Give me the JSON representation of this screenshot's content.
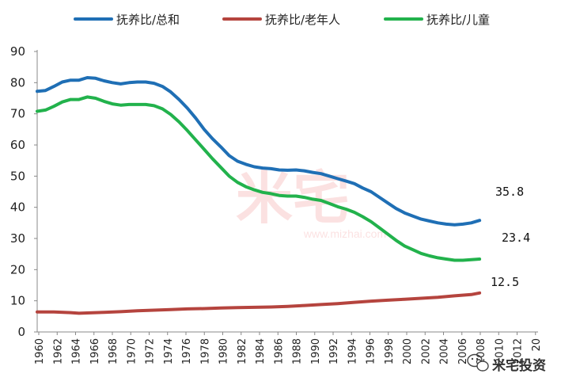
{
  "chart_data": {
    "type": "line",
    "title": "",
    "xlabel": "",
    "ylabel": "",
    "ylim": [
      0,
      90
    ],
    "yticks": [
      0,
      10,
      20,
      30,
      40,
      50,
      60,
      70,
      80,
      90
    ],
    "xlim": [
      1960,
      2020
    ],
    "xtick_labels": [
      "1960",
      "1962",
      "1964",
      "1966",
      "1968",
      "1970",
      "1972",
      "1974",
      "1976",
      "1978",
      "1980",
      "1982",
      "1984",
      "1986",
      "1988",
      "1990",
      "1992",
      "1994",
      "1996",
      "1998",
      "2000",
      "2002",
      "2004",
      "2006",
      "2008",
      "2010",
      "2012",
      "20"
    ],
    "grid": false,
    "legend_position": "top",
    "series": [
      {
        "name": "抚养比/总和",
        "color": "#1f6fb5",
        "points": [
          [
            1960,
            77.2
          ],
          [
            1961,
            77.5
          ],
          [
            1962,
            78.8
          ],
          [
            1963,
            80.2
          ],
          [
            1964,
            80.8
          ],
          [
            1965,
            80.8
          ],
          [
            1966,
            81.6
          ],
          [
            1967,
            81.4
          ],
          [
            1968,
            80.6
          ],
          [
            1969,
            80.0
          ],
          [
            1970,
            79.6
          ],
          [
            1971,
            80.0
          ],
          [
            1972,
            80.2
          ],
          [
            1973,
            80.2
          ],
          [
            1974,
            79.8
          ],
          [
            1975,
            78.8
          ],
          [
            1976,
            77.0
          ],
          [
            1977,
            74.6
          ],
          [
            1978,
            71.8
          ],
          [
            1979,
            68.6
          ],
          [
            1980,
            65.0
          ],
          [
            1981,
            62.0
          ],
          [
            1982,
            59.4
          ],
          [
            1983,
            56.6
          ],
          [
            1984,
            54.8
          ],
          [
            1985,
            53.8
          ],
          [
            1986,
            53.0
          ],
          [
            1987,
            52.6
          ],
          [
            1988,
            52.4
          ],
          [
            1989,
            52.0
          ],
          [
            1990,
            51.9
          ],
          [
            1991,
            52.0
          ],
          [
            1992,
            51.7
          ],
          [
            1993,
            51.2
          ],
          [
            1994,
            50.8
          ],
          [
            1995,
            50.0
          ],
          [
            1996,
            49.2
          ],
          [
            1997,
            48.4
          ],
          [
            1998,
            47.6
          ],
          [
            1999,
            46.2
          ],
          [
            2000,
            45.0
          ],
          [
            2001,
            43.2
          ],
          [
            2002,
            41.4
          ],
          [
            2003,
            39.6
          ],
          [
            2004,
            38.2
          ],
          [
            2005,
            37.2
          ],
          [
            2006,
            36.2
          ],
          [
            2007,
            35.6
          ],
          [
            2008,
            35.0
          ],
          [
            2009,
            34.6
          ],
          [
            2010,
            34.4
          ],
          [
            2011,
            34.6
          ],
          [
            2012,
            35.0
          ],
          [
            2013,
            35.8
          ]
        ]
      },
      {
        "name": "抚养比/老年人",
        "color": "#b5443e",
        "points": [
          [
            1960,
            6.4
          ],
          [
            1962,
            6.4
          ],
          [
            1964,
            6.2
          ],
          [
            1965,
            6.0
          ],
          [
            1966,
            6.1
          ],
          [
            1968,
            6.3
          ],
          [
            1970,
            6.5
          ],
          [
            1972,
            6.8
          ],
          [
            1974,
            7.0
          ],
          [
            1976,
            7.2
          ],
          [
            1978,
            7.4
          ],
          [
            1980,
            7.5
          ],
          [
            1982,
            7.7
          ],
          [
            1984,
            7.8
          ],
          [
            1986,
            7.9
          ],
          [
            1988,
            8.0
          ],
          [
            1990,
            8.2
          ],
          [
            1992,
            8.5
          ],
          [
            1994,
            8.8
          ],
          [
            1996,
            9.1
          ],
          [
            1998,
            9.5
          ],
          [
            2000,
            9.9
          ],
          [
            2002,
            10.2
          ],
          [
            2004,
            10.5
          ],
          [
            2006,
            10.8
          ],
          [
            2008,
            11.1
          ],
          [
            2010,
            11.6
          ],
          [
            2012,
            12.0
          ],
          [
            2013,
            12.5
          ]
        ]
      },
      {
        "name": "抚养比/儿童",
        "color": "#22b24c",
        "points": [
          [
            1960,
            70.8
          ],
          [
            1961,
            71.2
          ],
          [
            1962,
            72.4
          ],
          [
            1963,
            73.8
          ],
          [
            1964,
            74.6
          ],
          [
            1965,
            74.6
          ],
          [
            1966,
            75.4
          ],
          [
            1967,
            75.0
          ],
          [
            1968,
            74.0
          ],
          [
            1969,
            73.2
          ],
          [
            1970,
            72.8
          ],
          [
            1971,
            73.0
          ],
          [
            1972,
            73.0
          ],
          [
            1973,
            73.0
          ],
          [
            1974,
            72.6
          ],
          [
            1975,
            71.6
          ],
          [
            1976,
            69.8
          ],
          [
            1977,
            67.4
          ],
          [
            1978,
            64.6
          ],
          [
            1979,
            61.6
          ],
          [
            1980,
            58.6
          ],
          [
            1981,
            55.6
          ],
          [
            1982,
            52.8
          ],
          [
            1983,
            50.0
          ],
          [
            1984,
            48.0
          ],
          [
            1985,
            46.6
          ],
          [
            1986,
            45.6
          ],
          [
            1987,
            44.8
          ],
          [
            1988,
            44.4
          ],
          [
            1989,
            43.8
          ],
          [
            1990,
            43.6
          ],
          [
            1991,
            43.6
          ],
          [
            1992,
            43.2
          ],
          [
            1993,
            42.6
          ],
          [
            1994,
            42.2
          ],
          [
            1995,
            41.2
          ],
          [
            1996,
            40.2
          ],
          [
            1997,
            39.4
          ],
          [
            1998,
            38.4
          ],
          [
            1999,
            37.0
          ],
          [
            2000,
            35.4
          ],
          [
            2001,
            33.4
          ],
          [
            2002,
            31.4
          ],
          [
            2003,
            29.4
          ],
          [
            2004,
            27.6
          ],
          [
            2005,
            26.4
          ],
          [
            2006,
            25.2
          ],
          [
            2007,
            24.4
          ],
          [
            2008,
            23.8
          ],
          [
            2009,
            23.4
          ],
          [
            2010,
            23.0
          ],
          [
            2011,
            23.0
          ],
          [
            2012,
            23.2
          ],
          [
            2013,
            23.4
          ]
        ]
      }
    ],
    "annotations": [
      "35.8",
      "23.4",
      "12.5"
    ]
  },
  "watermark": {
    "main": "米宅",
    "url": "www.mizhai.com",
    "color": "#e9494b"
  },
  "brand": {
    "text": "米宅投资",
    "icon": "wechat-icon"
  }
}
